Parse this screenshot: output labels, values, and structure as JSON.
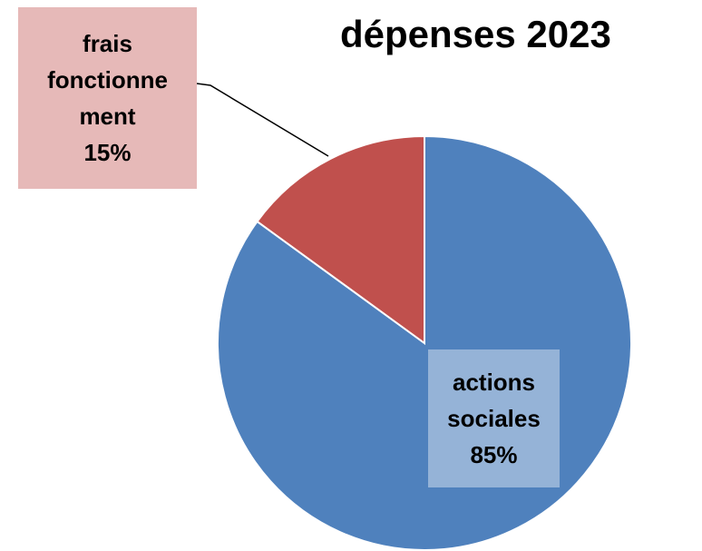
{
  "chart_data": {
    "type": "pie",
    "title": "dépenses 2023",
    "categories": [
      "actions sociales",
      "frais fonctionnement"
    ],
    "values": [
      85,
      15
    ],
    "value_labels": [
      "85%",
      "15%"
    ],
    "colors": [
      "#4f81bd",
      "#c0504d"
    ]
  }
}
